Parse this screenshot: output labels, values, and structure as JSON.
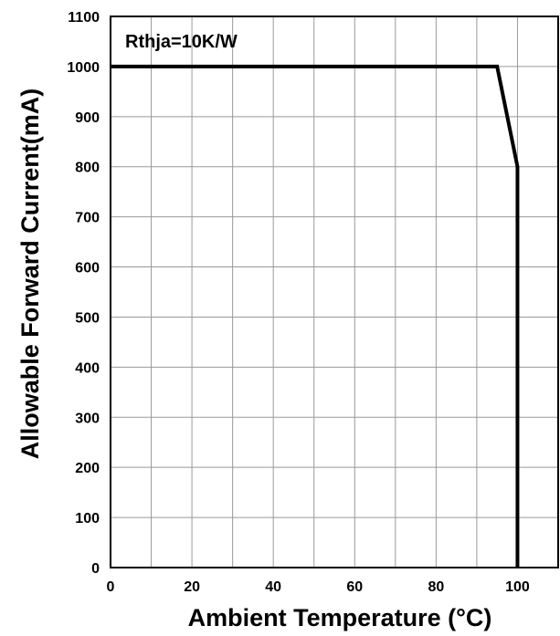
{
  "chart_data": {
    "type": "line",
    "title": "",
    "xlabel": "Ambient Temperature (°C)",
    "ylabel": "Allowable Forward Current(mA)",
    "xlim": [
      0,
      110
    ],
    "ylim": [
      0,
      1100
    ],
    "xticks": [
      0,
      10,
      20,
      30,
      40,
      50,
      60,
      70,
      80,
      90,
      100,
      110
    ],
    "xtick_labels": [
      "0",
      "20",
      "40",
      "60",
      "80",
      "100"
    ],
    "xtick_label_values": [
      0,
      20,
      40,
      60,
      80,
      100
    ],
    "yticks": [
      0,
      100,
      200,
      300,
      400,
      500,
      600,
      700,
      800,
      900,
      1000,
      1100
    ],
    "ytick_labels": [
      "0",
      "100",
      "200",
      "300",
      "400",
      "500",
      "600",
      "700",
      "800",
      "900",
      "1000",
      "1100"
    ],
    "grid": true,
    "legend": "none",
    "annotation": "Rthja=10K/W",
    "series": [
      {
        "x": [
          0,
          95,
          100,
          100
        ],
        "y": [
          1000,
          1000,
          800,
          0
        ],
        "color": "#000000"
      }
    ]
  }
}
